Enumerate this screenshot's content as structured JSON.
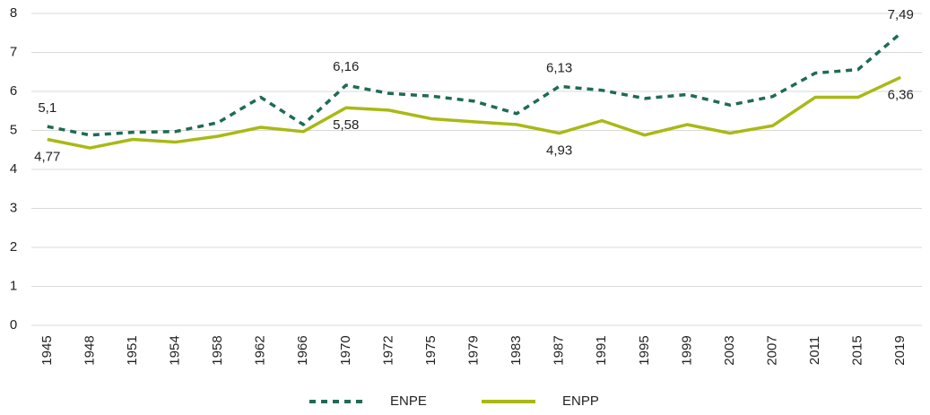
{
  "chart_data": {
    "type": "line",
    "categories": [
      "1945",
      "1948",
      "1951",
      "1954",
      "1958",
      "1962",
      "1966",
      "1970",
      "1972",
      "1975",
      "1979",
      "1983",
      "1987",
      "1991",
      "1995",
      "1999",
      "2003",
      "2007",
      "2011",
      "2015",
      "2019"
    ],
    "series": [
      {
        "name": "ENPE",
        "color": "#1f6b55",
        "dash": true,
        "values": [
          5.1,
          4.88,
          4.95,
          4.97,
          5.2,
          5.85,
          5.15,
          6.16,
          5.95,
          5.88,
          5.75,
          5.43,
          6.13,
          6.03,
          5.82,
          5.92,
          5.65,
          5.87,
          6.47,
          6.56,
          7.49
        ],
        "value_labels": [
          "5,1",
          null,
          null,
          null,
          null,
          null,
          null,
          "6,16",
          null,
          null,
          null,
          null,
          "6,13",
          null,
          null,
          null,
          null,
          null,
          null,
          null,
          "7,49"
        ]
      },
      {
        "name": "ENPP",
        "color": "#a9b914",
        "dash": false,
        "values": [
          4.77,
          4.55,
          4.77,
          4.7,
          4.85,
          5.08,
          4.97,
          5.58,
          5.52,
          5.3,
          5.22,
          5.15,
          4.93,
          5.25,
          4.88,
          5.15,
          4.93,
          5.12,
          5.85,
          5.85,
          6.36
        ],
        "value_labels": [
          "4,77",
          null,
          null,
          null,
          null,
          null,
          null,
          "5,58",
          null,
          null,
          null,
          null,
          "4,93",
          null,
          null,
          null,
          null,
          null,
          null,
          null,
          "6,36"
        ]
      }
    ],
    "ylim": [
      0,
      8
    ],
    "yticks": [
      0,
      1,
      2,
      3,
      4,
      5,
      6,
      7,
      8
    ],
    "grid": true,
    "legend": "bottom"
  }
}
